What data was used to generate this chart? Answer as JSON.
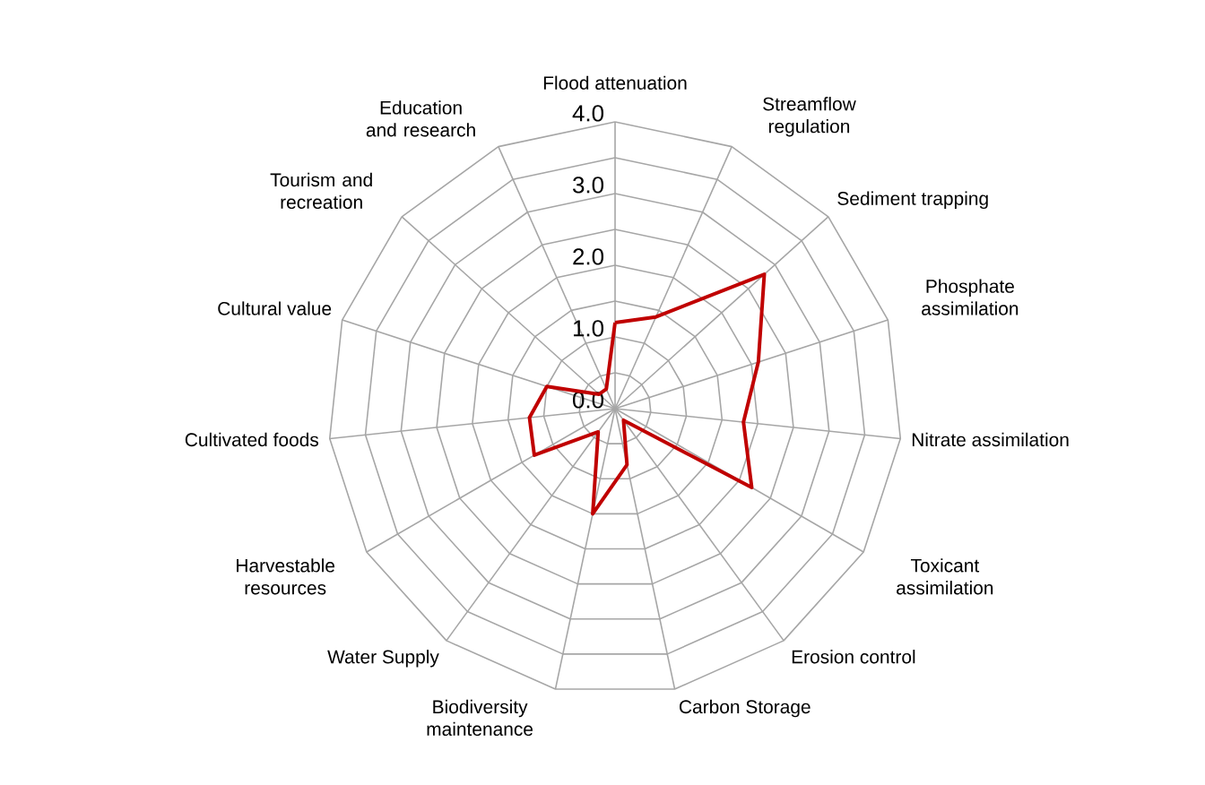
{
  "chart_data": {
    "type": "radar",
    "categories": [
      "Flood attenuation",
      "Streamflow regulation",
      "Sediment trapping",
      "Phosphate assimilation",
      "Nitrate assimilation",
      "Toxicant assimilation",
      "Erosion control",
      "Carbon Storage",
      "Biodiversity maintenance",
      "Water Supply",
      "Harvestable resources",
      "Cultivated foods",
      "Cultural value",
      "Tourism and recreation",
      "Education and research"
    ],
    "series": [
      {
        "color": "#c00000",
        "values": [
          1.2,
          1.4,
          2.8,
          2.1,
          1.8,
          2.2,
          0.2,
          0.8,
          1.5,
          0.4,
          1.3,
          1.2,
          1.0,
          0.3,
          0.3
        ]
      }
    ],
    "ylim": [
      0,
      4
    ],
    "yticks": [
      {
        "value": 0,
        "label": "0.0"
      },
      {
        "value": 1,
        "label": "1.0"
      },
      {
        "value": 2,
        "label": "2.0"
      },
      {
        "value": 3,
        "label": "3.0"
      },
      {
        "value": 4,
        "label": "4.0"
      }
    ],
    "grid": true,
    "marker": "none"
  }
}
